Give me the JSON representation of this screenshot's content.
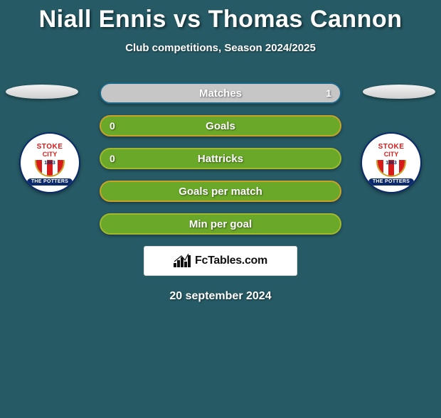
{
  "colors": {
    "background": "#265a65",
    "pill_grey_bg": "#c6c6c6",
    "pill_grey_border": "#1b688a",
    "pill_green_bg": "#6aa829",
    "pill_green_border_gold": "#c9a227",
    "pill_green_border_lime": "#a3b92b",
    "crest_red": "#d71a1a",
    "crest_navy": "#0a2a6b"
  },
  "header": {
    "title": "Niall Ennis vs Thomas Cannon",
    "subtitle": "Club competitions, Season 2024/2025"
  },
  "crest": {
    "line1": "STOKE",
    "line2": "CITY",
    "year": "1863",
    "ribbon": "THE POTTERS"
  },
  "rows": [
    {
      "key": "matches",
      "label": "Matches",
      "left": "",
      "right": "1",
      "style": "pill-matches"
    },
    {
      "key": "goals",
      "label": "Goals",
      "left": "0",
      "right": "",
      "style": "pill-green1"
    },
    {
      "key": "hattricks",
      "label": "Hattricks",
      "left": "0",
      "right": "",
      "style": "pill-green2"
    },
    {
      "key": "gpm",
      "label": "Goals per match",
      "left": "",
      "right": "",
      "style": "pill-green1"
    },
    {
      "key": "mpg",
      "label": "Min per goal",
      "left": "",
      "right": "",
      "style": "pill-green2"
    }
  ],
  "brand": "FcTables.com",
  "date": "20 september 2024"
}
